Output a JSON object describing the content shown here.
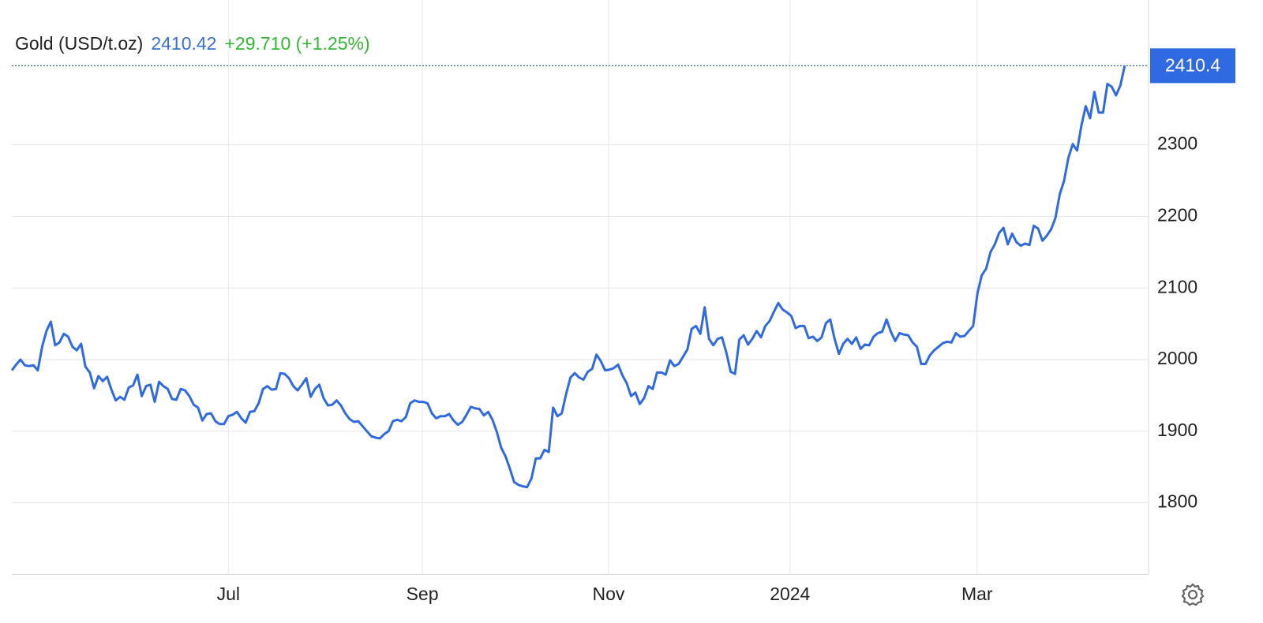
{
  "chart_data": {
    "type": "line",
    "name": "Gold (USD/t.oz)",
    "price": "2410.42",
    "change": "+29.710 (+1.25%)",
    "last_label": "2410.4",
    "color": "#2f6ae3",
    "values": [
      1985,
      1993,
      2000,
      1992,
      1991,
      1992,
      1985,
      2018,
      2040,
      2053,
      2020,
      2024,
      2036,
      2032,
      2018,
      2013,
      2022,
      1990,
      1982,
      1960,
      1977,
      1970,
      1976,
      1958,
      1943,
      1948,
      1944,
      1961,
      1964,
      1979,
      1949,
      1963,
      1965,
      1941,
      1969,
      1963,
      1959,
      1945,
      1944,
      1959,
      1957,
      1949,
      1937,
      1933,
      1915,
      1924,
      1925,
      1914,
      1910,
      1910,
      1921,
      1923,
      1927,
      1918,
      1912,
      1927,
      1928,
      1939,
      1959,
      1963,
      1958,
      1959,
      1981,
      1980,
      1974,
      1963,
      1957,
      1965,
      1974,
      1948,
      1959,
      1965,
      1946,
      1936,
      1937,
      1943,
      1936,
      1925,
      1917,
      1913,
      1914,
      1907,
      1900,
      1893,
      1891,
      1890,
      1896,
      1900,
      1914,
      1916,
      1914,
      1920,
      1939,
      1943,
      1941,
      1941,
      1939,
      1925,
      1918,
      1921,
      1921,
      1924,
      1915,
      1909,
      1913,
      1923,
      1934,
      1932,
      1931,
      1922,
      1927,
      1916,
      1899,
      1877,
      1865,
      1848,
      1829,
      1825,
      1823,
      1822,
      1834,
      1862,
      1862,
      1874,
      1871,
      1933,
      1921,
      1925,
      1952,
      1975,
      1981,
      1975,
      1972,
      1983,
      1987,
      2007,
      1998,
      1985,
      1986,
      1988,
      1993,
      1978,
      1967,
      1949,
      1954,
      1938,
      1946,
      1963,
      1959,
      1982,
      1982,
      1979,
      1999,
      1991,
      1994,
      2004,
      2014,
      2043,
      2047,
      2036,
      2073,
      2029,
      2020,
      2029,
      2031,
      2010,
      1983,
      1980,
      2028,
      2034,
      2021,
      2029,
      2040,
      2031,
      2047,
      2054,
      2067,
      2079,
      2070,
      2066,
      2061,
      2044,
      2047,
      2047,
      2030,
      2032,
      2026,
      2031,
      2051,
      2056,
      2029,
      2008,
      2022,
      2029,
      2022,
      2031,
      2015,
      2021,
      2020,
      2032,
      2037,
      2039,
      2056,
      2039,
      2026,
      2037,
      2035,
      2034,
      2024,
      2018,
      1994,
      1994,
      2006,
      2013,
      2018,
      2023,
      2025,
      2024,
      2037,
      2032,
      2033,
      2040,
      2047,
      2093,
      2118,
      2127,
      2150,
      2161,
      2177,
      2184,
      2161,
      2176,
      2164,
      2159,
      2162,
      2160,
      2187,
      2183,
      2166,
      2173,
      2182,
      2198,
      2231,
      2250,
      2282,
      2301,
      2292,
      2327,
      2354,
      2337,
      2374,
      2345,
      2345,
      2385,
      2381,
      2369,
      2383,
      2410.42
    ],
    "xlim": [
      0,
      262.5
    ],
    "xticks": [
      {
        "value": 50,
        "label": "Jul"
      },
      {
        "value": 94.8,
        "label": "Sep"
      },
      {
        "value": 137.8,
        "label": "Nov"
      },
      {
        "value": 179.7,
        "label": "2024"
      },
      {
        "value": 222.9,
        "label": "Mar"
      }
    ],
    "ylim": [
      1700,
      2500
    ],
    "yticks": [
      1800,
      1900,
      2000,
      2100,
      2200,
      2300
    ],
    "grid": true
  }
}
